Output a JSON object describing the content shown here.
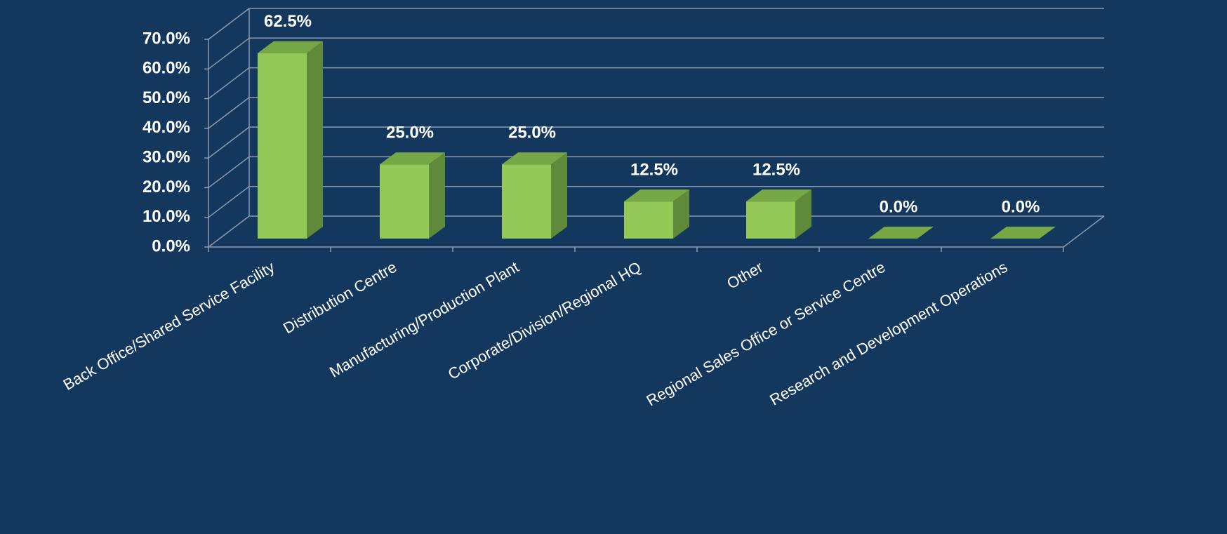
{
  "chart_data": {
    "type": "bar3d",
    "categories": [
      "Back Office/Shared Service Facility",
      "Distribution Centre",
      "Manufacturing/Production Plant",
      "Corporate/Division/Regional HQ",
      "Other",
      "Regional Sales Office or Service Centre",
      "Research and Development Operations"
    ],
    "values": [
      62.5,
      25,
      25,
      12.5,
      12.5,
      0,
      0
    ],
    "value_labels": [
      "62.5%",
      "25.0%",
      "25.0%",
      "12.5%",
      "12.5%",
      "0.0%",
      "0.0%"
    ],
    "color": "#92c957",
    "ylim": [
      0,
      70
    ],
    "yticks": [
      {
        "value": 0,
        "label": "0.0%"
      },
      {
        "value": 10,
        "label": "10.0%"
      },
      {
        "value": 20,
        "label": "20.0%"
      },
      {
        "value": 30,
        "label": "30.0%"
      },
      {
        "value": 40,
        "label": "40.0%"
      },
      {
        "value": 50,
        "label": "50.0%"
      },
      {
        "value": 60,
        "label": "60.0%"
      },
      {
        "value": 70,
        "label": "70.0%"
      }
    ],
    "grid": true
  }
}
